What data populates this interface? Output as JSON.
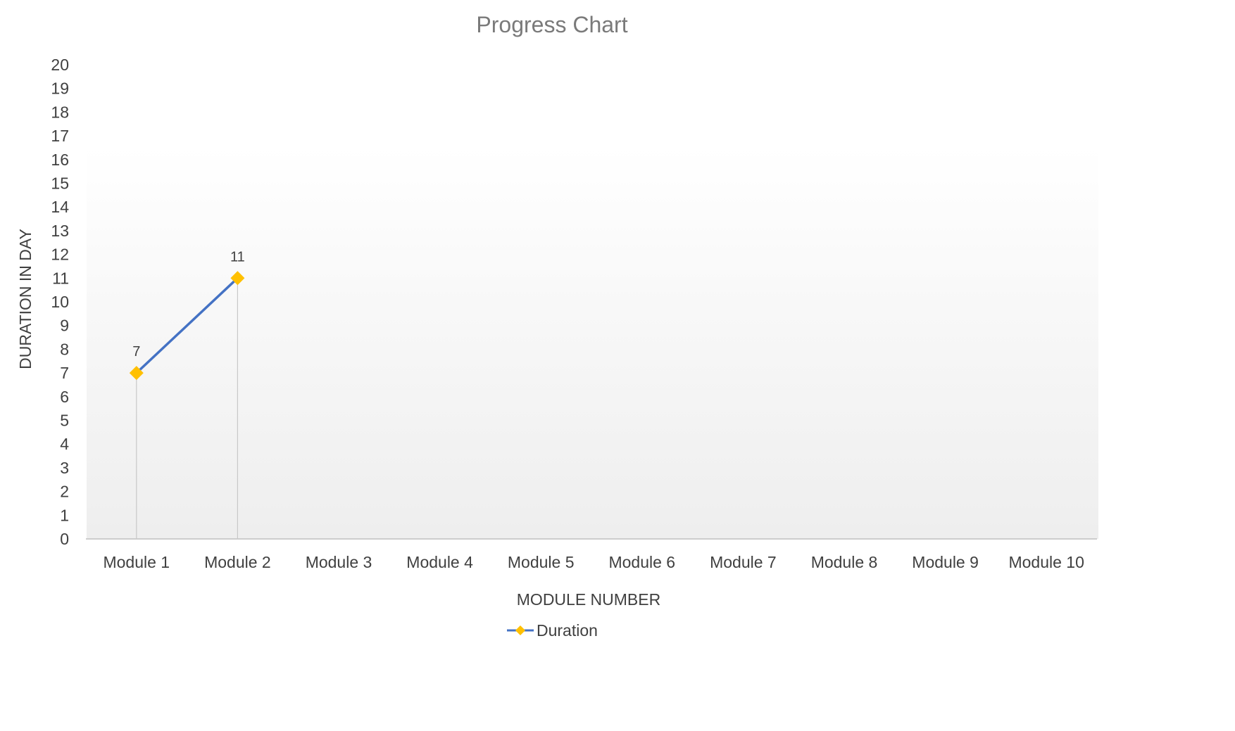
{
  "chart_data": {
    "type": "line",
    "title": "Progress Chart",
    "xlabel": "MODULE NUMBER",
    "ylabel": "DURATION IN DAY",
    "categories": [
      "Module 1",
      "Module 2",
      "Module 3",
      "Module 4",
      "Module 5",
      "Module 6",
      "Module 7",
      "Module 8",
      "Module 9",
      "Module 10"
    ],
    "yticks": [
      "0",
      "1",
      "2",
      "3",
      "4",
      "5",
      "6",
      "7",
      "8",
      "9",
      "10",
      "11",
      "12",
      "13",
      "14",
      "15",
      "16",
      "17",
      "18",
      "19",
      "20"
    ],
    "ylim": [
      0,
      20
    ],
    "grid": false,
    "drop_lines": true,
    "legend_position": "bottom",
    "series": [
      {
        "name": "Duration",
        "values": [
          7,
          11,
          null,
          null,
          null,
          null,
          null,
          null,
          null,
          null
        ],
        "data_labels": [
          "7",
          "11",
          null,
          null,
          null,
          null,
          null,
          null,
          null,
          null
        ],
        "line_color": "#4472C4",
        "marker": "diamond",
        "marker_color": "#FFC000"
      }
    ]
  },
  "colors": {
    "title": "#7a7a7a",
    "text": "#404040",
    "axis_line": "#bfbfbf",
    "drop_line": "#c8c8c8"
  }
}
